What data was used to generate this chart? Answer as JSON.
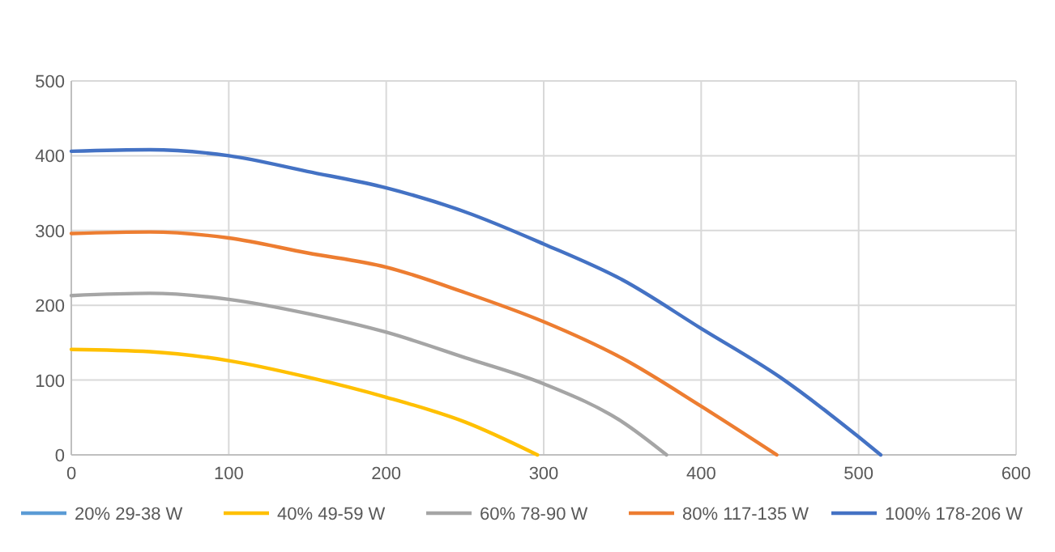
{
  "chart_data": {
    "type": "line",
    "xlim": [
      0,
      600
    ],
    "xticks": [
      0,
      100,
      200,
      300,
      400,
      500,
      600
    ],
    "ylim": [
      0,
      500
    ],
    "yticks": [
      0,
      100,
      200,
      300,
      400,
      500
    ],
    "grid": true,
    "legend": "bottom",
    "marker": "none",
    "line_style": "solid",
    "series": [
      {
        "name": "20% 29-38 W",
        "color": "#5b9bd5"
      },
      {
        "name": "40% 49-59 W",
        "color": "#ffc000",
        "x": [
          0,
          50,
          100,
          150,
          200,
          250,
          296
        ],
        "values": [
          141,
          138,
          126,
          104,
          77,
          44,
          0
        ]
      },
      {
        "name": "60% 78-90 W",
        "color": "#a5a5a5",
        "x": [
          0,
          50,
          100,
          150,
          200,
          250,
          300,
          350,
          378
        ],
        "values": [
          213,
          216,
          208,
          189,
          164,
          130,
          95,
          44,
          0
        ]
      },
      {
        "name": "80% 117-135 W",
        "color": "#ed7d31",
        "x": [
          0,
          50,
          100,
          150,
          200,
          250,
          300,
          350,
          400,
          448
        ],
        "values": [
          296,
          298,
          290,
          270,
          251,
          217,
          178,
          129,
          65,
          0
        ]
      },
      {
        "name": "100% 178-206 W",
        "color": "#4472c4",
        "x": [
          0,
          50,
          100,
          150,
          200,
          250,
          300,
          350,
          400,
          450,
          500,
          514
        ],
        "values": [
          406,
          408,
          400,
          379,
          357,
          325,
          282,
          234,
          169,
          104,
          24,
          0
        ]
      }
    ]
  }
}
